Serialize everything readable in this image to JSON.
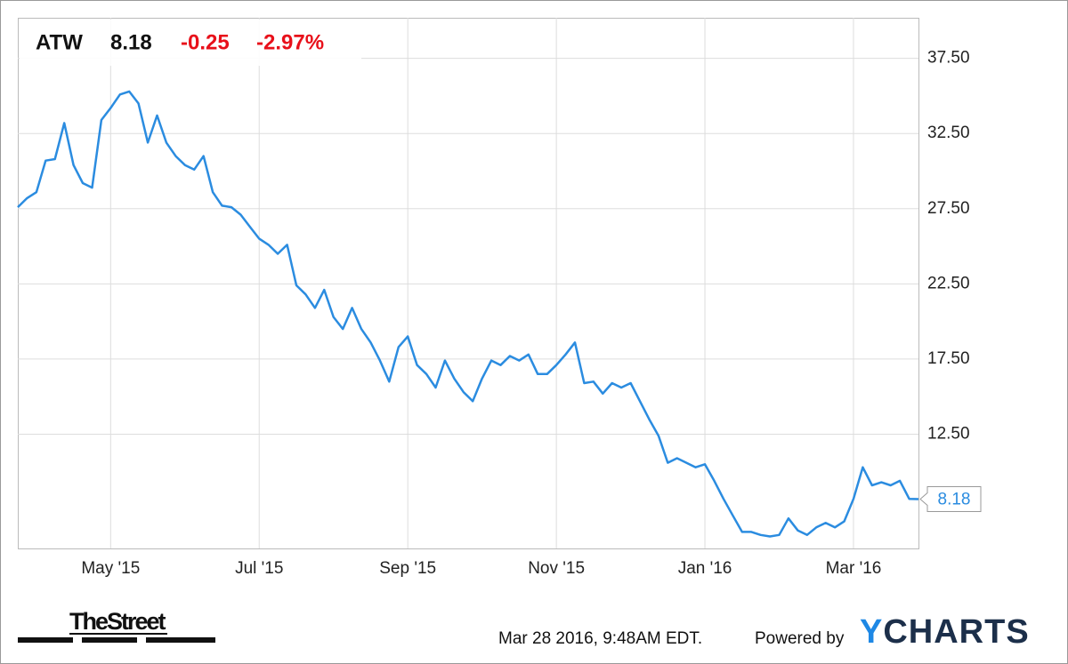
{
  "chart_data": {
    "type": "line",
    "header": {
      "ticker": "ATW",
      "price": "8.18",
      "change": "-0.25",
      "change_pct": "-2.97%"
    },
    "categories": [
      null,
      null,
      null,
      null,
      null,
      null,
      null,
      null,
      null,
      null,
      "May '15",
      null,
      null,
      null,
      null,
      null,
      null,
      null,
      null,
      null,
      null,
      null,
      null,
      null,
      null,
      null,
      "Jul '15",
      null,
      null,
      null,
      null,
      null,
      null,
      null,
      null,
      null,
      null,
      null,
      null,
      null,
      null,
      null,
      "Sep '15",
      null,
      null,
      null,
      null,
      null,
      null,
      null,
      null,
      null,
      null,
      null,
      null,
      null,
      null,
      null,
      "Nov '15",
      null,
      null,
      null,
      null,
      null,
      null,
      null,
      null,
      null,
      null,
      null,
      null,
      null,
      null,
      null,
      "Jan '16",
      null,
      null,
      null,
      null,
      null,
      null,
      null,
      null,
      null,
      null,
      null,
      null,
      null,
      null,
      null,
      "Mar '16",
      null,
      null,
      null,
      null,
      null,
      null,
      null
    ],
    "series": [
      {
        "name": "ATW",
        "color": "#2b8ce0",
        "values": [
          27.6,
          28.2,
          28.6,
          30.7,
          30.8,
          33.2,
          30.4,
          29.2,
          28.9,
          33.4,
          34.2,
          35.1,
          35.3,
          34.5,
          31.9,
          33.7,
          31.9,
          31.0,
          30.4,
          30.1,
          31.0,
          28.6,
          27.7,
          27.6,
          27.1,
          26.3,
          25.5,
          25.1,
          24.5,
          25.1,
          22.4,
          21.8,
          20.9,
          22.1,
          20.3,
          19.5,
          20.9,
          19.5,
          18.6,
          17.4,
          16.0,
          18.3,
          19.0,
          17.1,
          16.5,
          15.6,
          17.4,
          16.2,
          15.3,
          14.7,
          16.2,
          17.4,
          17.1,
          17.7,
          17.4,
          17.8,
          16.5,
          16.5,
          17.1,
          17.8,
          18.6,
          15.9,
          16.0,
          15.2,
          15.9,
          15.6,
          15.9,
          14.7,
          13.5,
          12.4,
          10.6,
          10.9,
          10.6,
          10.3,
          10.5,
          9.4,
          8.2,
          7.1,
          6.0,
          6.0,
          5.8,
          5.7,
          5.8,
          6.9,
          6.1,
          5.8,
          6.3,
          6.6,
          6.3,
          6.7,
          8.2,
          10.3,
          9.1,
          9.3,
          9.1,
          9.4,
          8.2,
          8.18
        ]
      }
    ],
    "ylim": [
      4.9,
      40.2
    ],
    "yticks": [
      {
        "value": 12.5,
        "label": "12.50"
      },
      {
        "value": 17.5,
        "label": "17.50"
      },
      {
        "value": 22.5,
        "label": "22.50"
      },
      {
        "value": 27.5,
        "label": "27.50"
      },
      {
        "value": 32.5,
        "label": "32.50"
      },
      {
        "value": 37.5,
        "label": "37.50"
      }
    ],
    "grid": true,
    "footer": {
      "brand": "TheStreet",
      "timestamp": "Mar 28 2016, 9:48AM EDT.",
      "powered": "Powered by",
      "logo": "YCHARTS"
    }
  }
}
